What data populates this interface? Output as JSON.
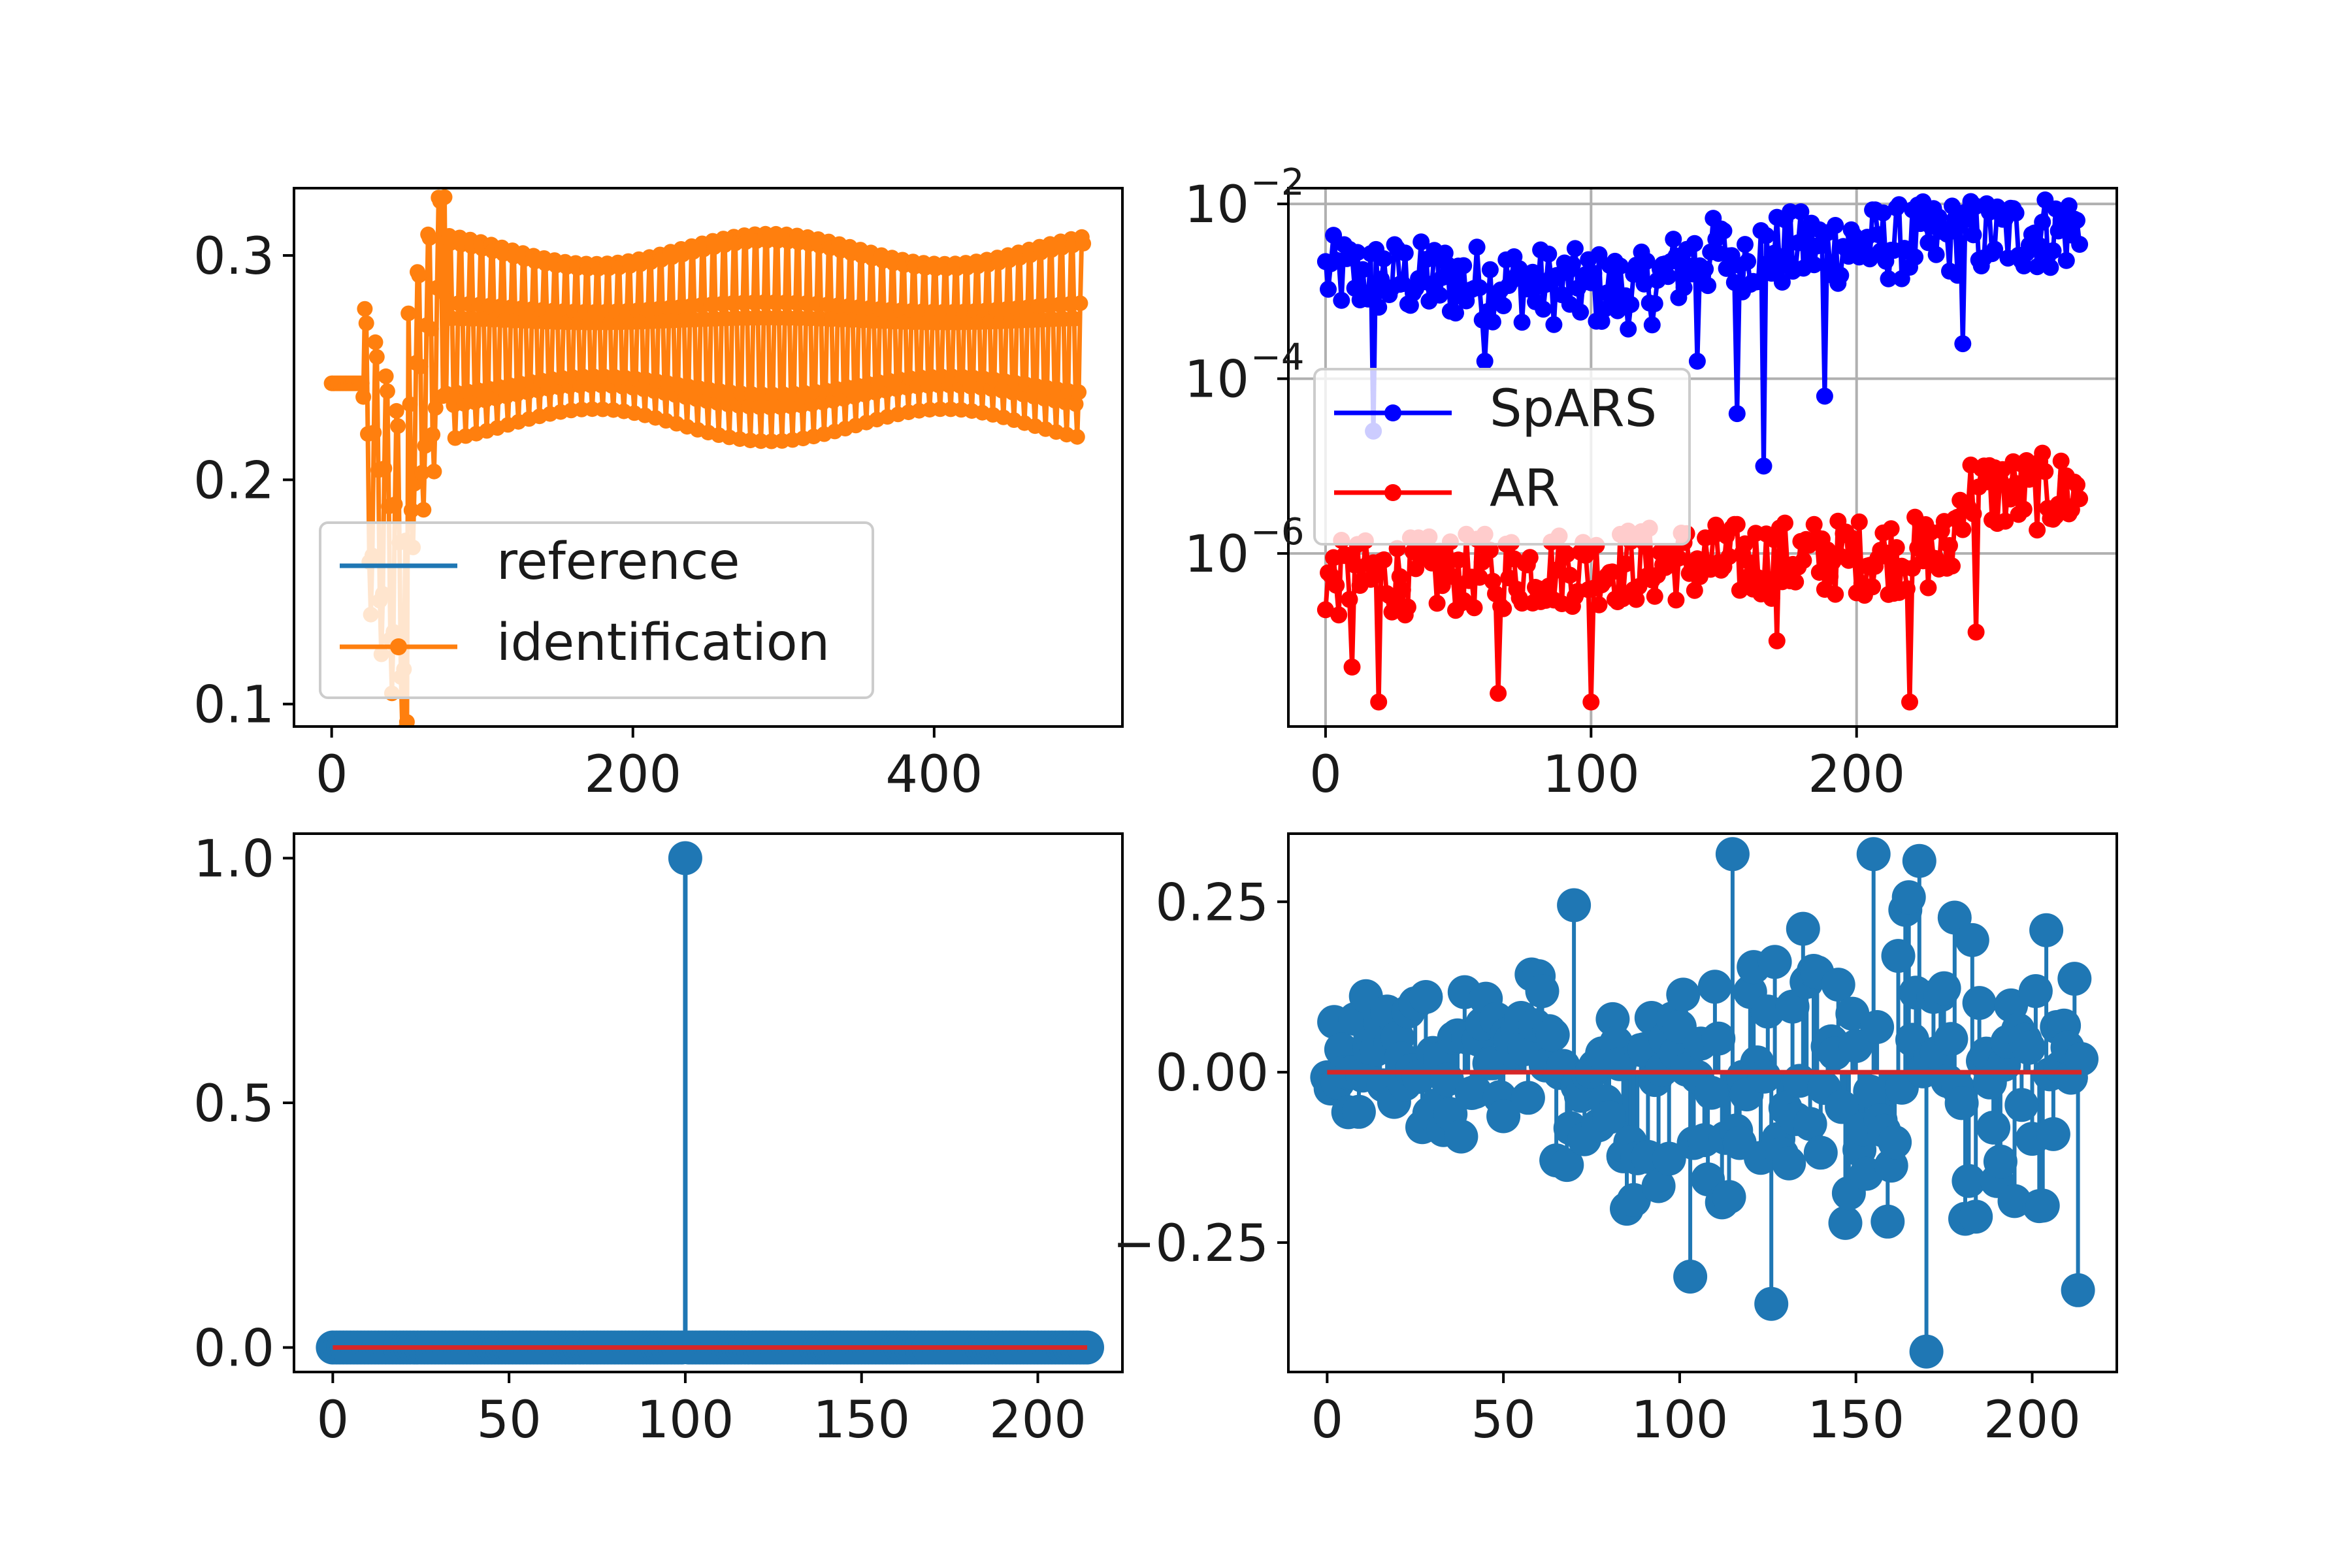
{
  "colors": {
    "reference": "#1f77b4",
    "identification": "#ff7f0e",
    "spars": "#0000ff",
    "ar": "#ff0000",
    "stem": "#1f77b4",
    "baseline": "#d62728",
    "grid": "#b0b0b0"
  },
  "chart_data": [
    {
      "id": "top-left",
      "type": "line",
      "title": "",
      "xlabel": "",
      "ylabel": "",
      "xlim": [
        -25,
        525
      ],
      "ylim": [
        0.09,
        0.33
      ],
      "xticks": [
        0,
        200,
        400
      ],
      "xtick_labels": [
        "0",
        "200",
        "400"
      ],
      "yticks": [
        0.1,
        0.2,
        0.3
      ],
      "ytick_labels": [
        "0.1",
        "0.2",
        "0.3"
      ],
      "legend": {
        "position": "lower-left",
        "entries": [
          "reference",
          "identification"
        ]
      },
      "series": [
        {
          "name": "reference",
          "marker": "none",
          "values": []
        },
        {
          "name": "identification",
          "marker": "o",
          "segments": [
            {
              "x0": 0,
              "x1": 20,
              "y_start": 0.243,
              "y_end": 0.243,
              "amp": 0
            },
            {
              "x0": 20,
              "x1": 50,
              "y_start": 0.22,
              "y_end": 0.15,
              "amp": 0.07
            },
            {
              "x0": 50,
              "x1": 75,
              "y_start": 0.22,
              "y_end": 0.28,
              "amp": 0.06
            },
            {
              "x0": 75,
              "x1": 500,
              "y_start": 0.265,
              "y_end": 0.265,
              "amp": 0.048
            }
          ],
          "period": 14,
          "num_points": 500,
          "extremes": [
            {
              "x": 50,
              "y": 0.092
            },
            {
              "x": 75,
              "y": 0.326
            }
          ]
        }
      ]
    },
    {
      "id": "top-right",
      "type": "line",
      "yscale": "log",
      "grid": true,
      "xlim": [
        -14,
        298
      ],
      "ylim_log10": [
        -7.98,
        -1.82
      ],
      "xticks": [
        0,
        100,
        200
      ],
      "xtick_labels": [
        "0",
        "100",
        "200"
      ],
      "yticks_log10": [
        -6,
        -4,
        -2
      ],
      "ytick_base": "10",
      "ytick_exponents": [
        "−6",
        "−4",
        "−2"
      ],
      "legend": {
        "position": "center-left",
        "entries": [
          "SpARS",
          "AR"
        ]
      },
      "series": [
        {
          "name": "SpARS",
          "marker": "o",
          "num_points": 285,
          "log10_center": [
            {
              "x": 0,
              "y": -2.8
            },
            {
              "x": 120,
              "y": -3.0
            },
            {
              "x": 140,
              "y": -2.6
            },
            {
              "x": 280,
              "y": -2.3
            }
          ],
          "log10_spread": 0.45,
          "drops": [
            {
              "x": 18,
              "y": -4.6
            },
            {
              "x": 60,
              "y": -3.8
            },
            {
              "x": 140,
              "y": -3.8
            },
            {
              "x": 155,
              "y": -4.4
            },
            {
              "x": 165,
              "y": -5.0
            },
            {
              "x": 188,
              "y": -4.2
            },
            {
              "x": 240,
              "y": -3.6
            }
          ]
        },
        {
          "name": "AR",
          "marker": "o",
          "num_points": 285,
          "log10_center": [
            {
              "x": 0,
              "y": -6.3
            },
            {
              "x": 140,
              "y": -6.1
            },
            {
              "x": 235,
              "y": -6.0
            },
            {
              "x": 240,
              "y": -5.3
            },
            {
              "x": 285,
              "y": -5.3
            }
          ],
          "log10_spread": 0.45,
          "drops": [
            {
              "x": 20,
              "y": -7.7
            },
            {
              "x": 65,
              "y": -7.6
            },
            {
              "x": 100,
              "y": -7.7
            },
            {
              "x": 220,
              "y": -7.7
            },
            {
              "x": 245,
              "y": -6.9
            },
            {
              "x": 170,
              "y": -7.0
            },
            {
              "x": 10,
              "y": -7.3
            }
          ]
        }
      ]
    },
    {
      "id": "bottom-left",
      "type": "stem",
      "xlim": [
        -11,
        224
      ],
      "ylim": [
        -0.05,
        1.05
      ],
      "xticks": [
        0,
        50,
        100,
        150,
        200
      ],
      "xtick_labels": [
        "0",
        "50",
        "100",
        "150",
        "200"
      ],
      "yticks": [
        0.0,
        0.5,
        1.0
      ],
      "ytick_labels": [
        "0.0",
        "0.5",
        "1.0"
      ],
      "num_points": 215,
      "baseline": 0,
      "nonzero": [
        {
          "x": 100,
          "y": 1.0
        }
      ]
    },
    {
      "id": "bottom-right",
      "type": "stem",
      "xlim": [
        -11,
        224
      ],
      "ylim": [
        -0.44,
        0.35
      ],
      "xticks": [
        0,
        50,
        100,
        150,
        200
      ],
      "xtick_labels": [
        "0",
        "50",
        "100",
        "150",
        "200"
      ],
      "yticks": [
        -0.25,
        0.0,
        0.25
      ],
      "ytick_labels": [
        "−0.25",
        "0.00",
        "0.25"
      ],
      "num_points": 215,
      "baseline": 0,
      "spread_early": 0.1,
      "spread_late": 0.28,
      "notable": [
        {
          "x": 70,
          "y": 0.245
        },
        {
          "x": 115,
          "y": 0.32
        },
        {
          "x": 155,
          "y": 0.32
        },
        {
          "x": 170,
          "y": -0.41
        },
        {
          "x": 168,
          "y": 0.31
        },
        {
          "x": 103,
          "y": -0.3
        },
        {
          "x": 126,
          "y": -0.34
        },
        {
          "x": 213,
          "y": -0.32
        }
      ]
    }
  ]
}
